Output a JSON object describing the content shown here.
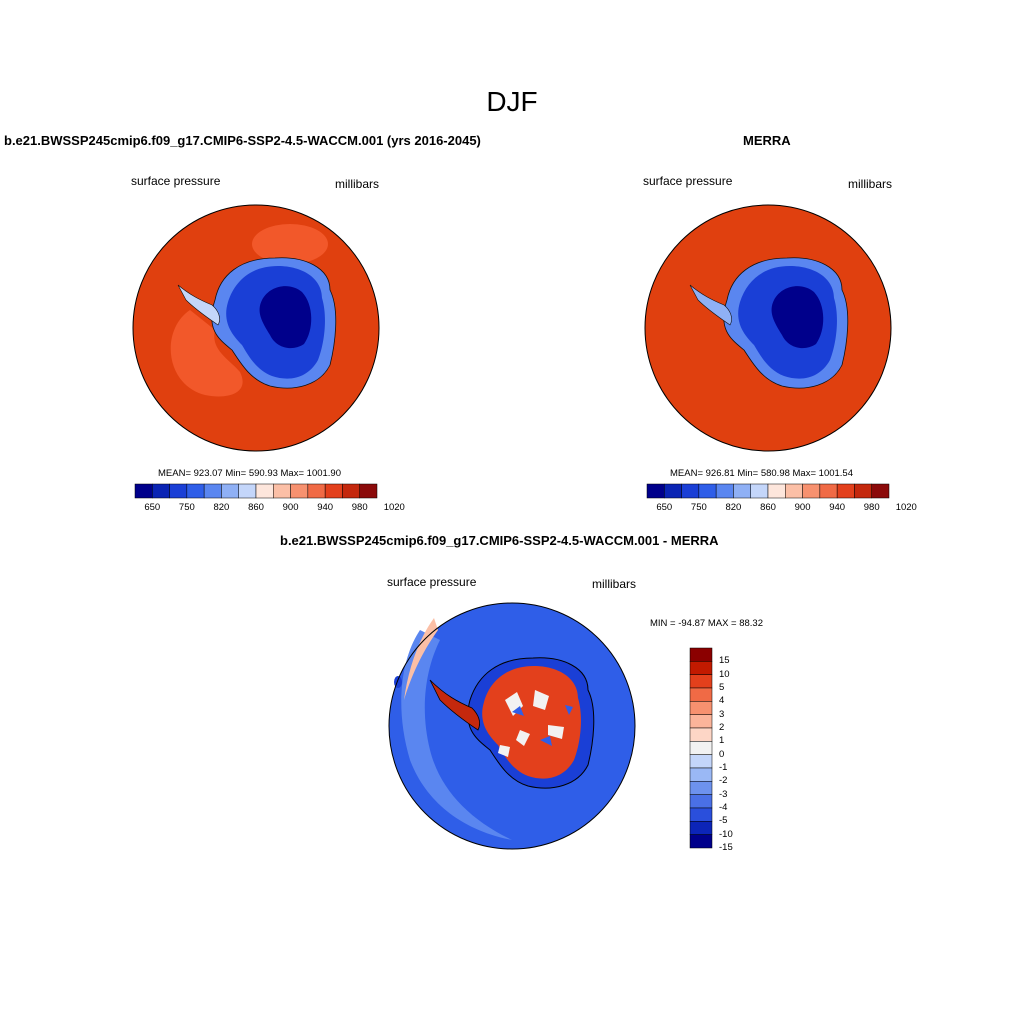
{
  "page_title": "DJF",
  "panels": [
    {
      "title": "b.e21.BWSSP245cmip6.f09_g17.CMIP6-SSP2-4.5-WACCM.001 (yrs 2016-2045)",
      "variable": "surface pressure",
      "units": "millibars",
      "stats": "MEAN= 923.07  Min= 590.93  Max= 1001.90",
      "colorbar_labels": [
        "650",
        "750",
        "820",
        "860",
        "900",
        "940",
        "980",
        "1020"
      ]
    },
    {
      "title": "MERRA",
      "variable": "surface pressure",
      "units": "millibars",
      "stats": "MEAN= 926.81  Min= 580.98  Max= 1001.54",
      "colorbar_labels": [
        "650",
        "750",
        "820",
        "860",
        "900",
        "940",
        "980",
        "1020"
      ]
    },
    {
      "title": "b.e21.BWSSP245cmip6.f09_g17.CMIP6-SSP2-4.5-WACCM.001 - MERRA",
      "variable": "surface pressure",
      "units": "millibars",
      "stats": "MIN = -94.87 MAX =  88.32",
      "colorbar_labels": [
        "15",
        "10",
        "5",
        "4",
        "3",
        "2",
        "1",
        "0",
        "-1",
        "-2",
        "-3",
        "-4",
        "-5",
        "-10",
        "-15"
      ]
    }
  ],
  "colors": {
    "abs_scale": [
      "#00008b",
      "#0a24b4",
      "#1a3fd6",
      "#2f5ee8",
      "#5a86f0",
      "#8fb0f5",
      "#c4d6fa",
      "#fde6dc",
      "#fbbfa6",
      "#f7916f",
      "#f06a45",
      "#e3401c",
      "#c4280d",
      "#8b0a0a"
    ],
    "diff_scale": [
      "#8b0000",
      "#c21a00",
      "#e3401c",
      "#f06a45",
      "#f7916f",
      "#fbb49a",
      "#fdd6c6",
      "#f2f2f2",
      "#c4d6fa",
      "#9ab8f5",
      "#6d92ee",
      "#4a70e6",
      "#2a4fdc",
      "#0c25b8",
      "#00008b"
    ],
    "ocean_abs": "#e0400f",
    "ocean_diff": "#1e46dc"
  }
}
